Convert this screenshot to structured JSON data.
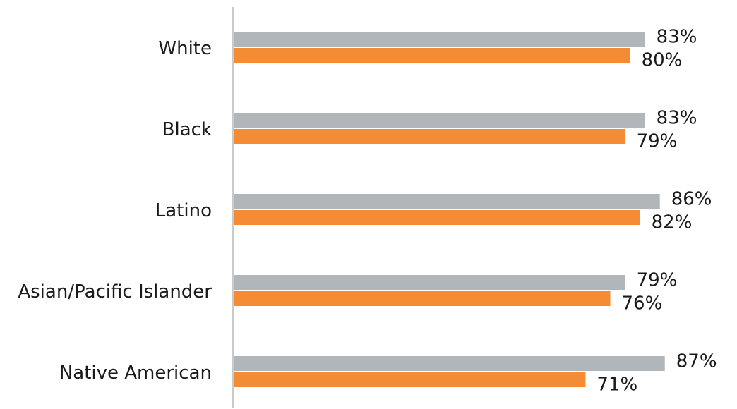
{
  "chart_data": {
    "type": "bar",
    "orientation": "horizontal",
    "categories": [
      "White",
      "Black",
      "Latino",
      "Asian/Pacific Islander",
      "Native American"
    ],
    "series": [
      {
        "values": [
          83,
          83,
          86,
          79,
          87
        ],
        "labels": [
          "83%",
          "83%",
          "86%",
          "79%",
          "87%"
        ],
        "color": "#b1b6ba"
      },
      {
        "values": [
          80,
          79,
          82,
          76,
          71
        ],
        "labels": [
          "80%",
          "79%",
          "82%",
          "76%",
          "71%"
        ],
        "color": "#f48b35"
      }
    ],
    "title": "",
    "xlabel": "",
    "ylabel": "",
    "grid": false,
    "legend": "none"
  }
}
